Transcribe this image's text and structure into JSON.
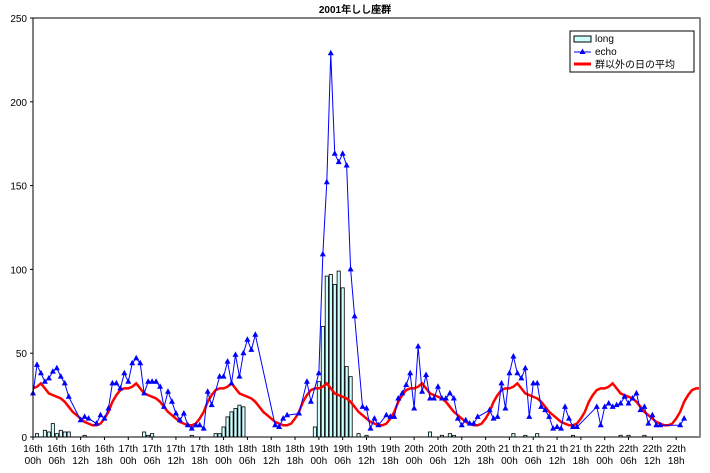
{
  "chart_data": {
    "type": "bar+line",
    "title": "2001年しし座群",
    "xlabel": "",
    "ylabel": "",
    "ylim": [
      0,
      250
    ],
    "yticks": [
      0,
      50,
      100,
      150,
      200,
      250
    ],
    "x_unit": "hours since 16th 00h",
    "xlim": [
      0,
      168
    ],
    "xtick_labels": [
      [
        "16th",
        "00h"
      ],
      [
        "16th",
        "06h"
      ],
      [
        "16th",
        "12h"
      ],
      [
        "16th",
        "18h"
      ],
      [
        "17th",
        "00h"
      ],
      [
        "17th",
        "06h"
      ],
      [
        "17th",
        "12h"
      ],
      [
        "17th",
        "18h"
      ],
      [
        "18th",
        "00h"
      ],
      [
        "18th",
        "06h"
      ],
      [
        "18th",
        "12h"
      ],
      [
        "18th",
        "18h"
      ],
      [
        "19th",
        "00h"
      ],
      [
        "19th",
        "06h"
      ],
      [
        "19th",
        "12h"
      ],
      [
        "19th",
        "18h"
      ],
      [
        "20th",
        "00h"
      ],
      [
        "20th",
        "06h"
      ],
      [
        "20th",
        "12h"
      ],
      [
        "20th",
        "18h"
      ],
      [
        "21 th",
        "00h"
      ],
      [
        "21 th",
        "06h"
      ],
      [
        "21 th",
        "12h"
      ],
      [
        "21 th",
        "18h"
      ],
      [
        "22th",
        "00h"
      ],
      [
        "22th",
        "06h"
      ],
      [
        "22th",
        "12h"
      ],
      [
        "22th",
        "18h"
      ]
    ],
    "grid": false,
    "legend_position": "top-right",
    "series": [
      {
        "name": "long",
        "kind": "bar",
        "color": "#ccffff",
        "points": [
          [
            1,
            2
          ],
          [
            3,
            4
          ],
          [
            4,
            3
          ],
          [
            5,
            8
          ],
          [
            6,
            2
          ],
          [
            7,
            4
          ],
          [
            8,
            3
          ],
          [
            9,
            3
          ],
          [
            13,
            1
          ],
          [
            28,
            3
          ],
          [
            29,
            1
          ],
          [
            30,
            2
          ],
          [
            40,
            1
          ],
          [
            46,
            2
          ],
          [
            47,
            2
          ],
          [
            48,
            6
          ],
          [
            49,
            12
          ],
          [
            50,
            15
          ],
          [
            51,
            17
          ],
          [
            52,
            19
          ],
          [
            53,
            18
          ],
          [
            71,
            6
          ],
          [
            72,
            33
          ],
          [
            73,
            66
          ],
          [
            74,
            96
          ],
          [
            75,
            97
          ],
          [
            76,
            91
          ],
          [
            77,
            99
          ],
          [
            78,
            89
          ],
          [
            79,
            42
          ],
          [
            80,
            36
          ],
          [
            82,
            2
          ],
          [
            84,
            1
          ],
          [
            100,
            3
          ],
          [
            103,
            1
          ],
          [
            105,
            2
          ],
          [
            106,
            1
          ],
          [
            121,
            2
          ],
          [
            124,
            1
          ],
          [
            127,
            2
          ],
          [
            136,
            1
          ],
          [
            148,
            1
          ],
          [
            150,
            1
          ],
          [
            154,
            1
          ]
        ]
      },
      {
        "name": "echo",
        "kind": "line",
        "color": "#0000ff",
        "points": [
          [
            0,
            26
          ],
          [
            1,
            43
          ],
          [
            2,
            38
          ],
          [
            3,
            33
          ],
          [
            4,
            35
          ],
          [
            5,
            39
          ],
          [
            6,
            41
          ],
          [
            7,
            36
          ],
          [
            8,
            32
          ],
          [
            9,
            24
          ],
          [
            12,
            10
          ],
          [
            13,
            12
          ],
          [
            14,
            11
          ],
          [
            16,
            8
          ],
          [
            17,
            13
          ],
          [
            18,
            11
          ],
          [
            19,
            17
          ],
          [
            20,
            32
          ],
          [
            21,
            32
          ],
          [
            22,
            29
          ],
          [
            23,
            38
          ],
          [
            24,
            33
          ],
          [
            25,
            44
          ],
          [
            26,
            47
          ],
          [
            27,
            44
          ],
          [
            28,
            26
          ],
          [
            29,
            33
          ],
          [
            30,
            33
          ],
          [
            31,
            33
          ],
          [
            32,
            30
          ],
          [
            33,
            18
          ],
          [
            34,
            27
          ],
          [
            35,
            21
          ],
          [
            36,
            14
          ],
          [
            37,
            10
          ],
          [
            38,
            14
          ],
          [
            39,
            7
          ],
          [
            40,
            5
          ],
          [
            41,
            7
          ],
          [
            42,
            7
          ],
          [
            43,
            5
          ],
          [
            44,
            27
          ],
          [
            45,
            19
          ],
          [
            47,
            36
          ],
          [
            48,
            36
          ],
          [
            49,
            45
          ],
          [
            50,
            32
          ],
          [
            51,
            49
          ],
          [
            52,
            36
          ],
          [
            53,
            50
          ],
          [
            54,
            58
          ],
          [
            55,
            52
          ],
          [
            56,
            61
          ],
          [
            61,
            7
          ],
          [
            62,
            6
          ],
          [
            63,
            11
          ],
          [
            64,
            13
          ],
          [
            67,
            14
          ],
          [
            69,
            33
          ],
          [
            70,
            21
          ],
          [
            72,
            38
          ],
          [
            73,
            109
          ],
          [
            74,
            152
          ],
          [
            75,
            229
          ],
          [
            76,
            169
          ],
          [
            77,
            164
          ],
          [
            78,
            169
          ],
          [
            79,
            162
          ],
          [
            80,
            100
          ],
          [
            81,
            72
          ],
          [
            83,
            18
          ],
          [
            84,
            17
          ],
          [
            85,
            5
          ],
          [
            86,
            11
          ],
          [
            87,
            7
          ],
          [
            89,
            13
          ],
          [
            90,
            12
          ],
          [
            91,
            12
          ],
          [
            92,
            23
          ],
          [
            93,
            26
          ],
          [
            94,
            31
          ],
          [
            95,
            38
          ],
          [
            96,
            17
          ],
          [
            97,
            54
          ],
          [
            98,
            27
          ],
          [
            99,
            37
          ],
          [
            100,
            23
          ],
          [
            101,
            23
          ],
          [
            102,
            30
          ],
          [
            103,
            23
          ],
          [
            104,
            23
          ],
          [
            105,
            26
          ],
          [
            106,
            23
          ],
          [
            107,
            11
          ],
          [
            108,
            7
          ],
          [
            109,
            10
          ],
          [
            110,
            8
          ],
          [
            111,
            8
          ],
          [
            112,
            12
          ],
          [
            115,
            16
          ],
          [
            116,
            11
          ],
          [
            117,
            12
          ],
          [
            118,
            32
          ],
          [
            119,
            17
          ],
          [
            120,
            38
          ],
          [
            121,
            48
          ],
          [
            122,
            38
          ],
          [
            123,
            35
          ],
          [
            124,
            41
          ],
          [
            125,
            12
          ],
          [
            126,
            32
          ],
          [
            127,
            32
          ],
          [
            128,
            18
          ],
          [
            129,
            16
          ],
          [
            130,
            12
          ],
          [
            131,
            5
          ],
          [
            132,
            6
          ],
          [
            133,
            5
          ],
          [
            134,
            18
          ],
          [
            135,
            11
          ],
          [
            136,
            6
          ],
          [
            137,
            6
          ],
          [
            142,
            18
          ],
          [
            143,
            7
          ],
          [
            144,
            18
          ],
          [
            145,
            20
          ],
          [
            146,
            18
          ],
          [
            147,
            19
          ],
          [
            148,
            20
          ],
          [
            149,
            24
          ],
          [
            150,
            20
          ],
          [
            151,
            23
          ],
          [
            152,
            26
          ],
          [
            153,
            16
          ],
          [
            154,
            18
          ],
          [
            155,
            8
          ],
          [
            156,
            13
          ],
          [
            157,
            7
          ],
          [
            158,
            7
          ],
          [
            163,
            7
          ],
          [
            164,
            11
          ]
        ]
      },
      {
        "name": "群以外の日の平均",
        "kind": "line",
        "color": "#ff0000",
        "daily_profile_by_hour": [
          29,
          30,
          32,
          29,
          26,
          25,
          24,
          23,
          21,
          18,
          15,
          13,
          11,
          9,
          8,
          7,
          7,
          8,
          11,
          15,
          21,
          25,
          28,
          29
        ]
      }
    ]
  }
}
